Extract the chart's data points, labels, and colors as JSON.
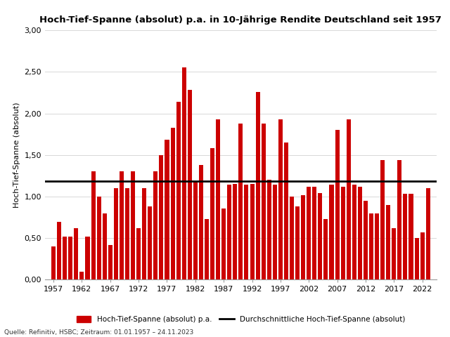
{
  "title": "Hoch-Tief-Spanne (absolut) p.a. in 10-Jährige Rendite Deutschland seit 1957",
  "xlabel": "",
  "ylabel": "Hoch-Tief-Spanne (absolut)",
  "source_text": "Quelle: Refinitiv, HSBC; Zeitraum: 01.01.1957 – 24.11.2023",
  "legend_bar": "Hoch-Tief-Spanne (absolut) p.a.",
  "legend_line": "Durchschnittliche Hoch-Tief-Spanne (absolut)",
  "bar_color": "#cc0000",
  "line_color": "#000000",
  "background_color": "#ffffff",
  "ylim": [
    0.0,
    3.0
  ],
  "yticks": [
    0.0,
    0.5,
    1.0,
    1.5,
    2.0,
    2.5,
    3.0
  ],
  "ytick_labels": [
    "0,00",
    "0,50",
    "1,00",
    "1,50",
    "2,00",
    "2,50",
    "3,00"
  ],
  "xticks": [
    1957,
    1962,
    1967,
    1972,
    1977,
    1982,
    1987,
    1992,
    1997,
    2002,
    2007,
    2012,
    2017,
    2022
  ],
  "average_line": 1.19,
  "years": [
    1957,
    1958,
    1959,
    1960,
    1961,
    1962,
    1963,
    1964,
    1965,
    1966,
    1967,
    1968,
    1969,
    1970,
    1971,
    1972,
    1973,
    1974,
    1975,
    1976,
    1977,
    1978,
    1979,
    1980,
    1981,
    1982,
    1983,
    1984,
    1985,
    1986,
    1987,
    1988,
    1989,
    1990,
    1991,
    1992,
    1993,
    1994,
    1995,
    1996,
    1997,
    1998,
    1999,
    2000,
    2001,
    2002,
    2003,
    2004,
    2005,
    2006,
    2007,
    2008,
    2009,
    2010,
    2011,
    2012,
    2013,
    2014,
    2015,
    2016,
    2017,
    2018,
    2019,
    2020,
    2021,
    2022,
    2023
  ],
  "values": [
    0.4,
    0.7,
    0.52,
    0.52,
    0.62,
    0.1,
    0.52,
    1.3,
    1.0,
    0.8,
    0.42,
    1.1,
    1.3,
    1.1,
    1.3,
    0.62,
    1.1,
    0.88,
    1.3,
    1.5,
    1.68,
    1.83,
    2.14,
    2.55,
    2.28,
    1.19,
    1.38,
    0.73,
    1.58,
    1.93,
    0.86,
    1.14,
    1.15,
    1.88,
    1.14,
    1.15,
    2.26,
    1.88,
    1.2,
    1.14,
    1.93,
    1.65,
    1.0,
    0.88,
    1.02,
    1.12,
    1.12,
    1.04,
    0.73,
    1.14,
    1.8,
    1.12,
    1.93,
    1.14,
    1.12,
    0.95,
    0.8,
    0.8,
    1.44,
    0.9,
    0.62,
    1.44,
    1.03,
    1.03,
    0.5,
    0.57,
    1.1
  ]
}
